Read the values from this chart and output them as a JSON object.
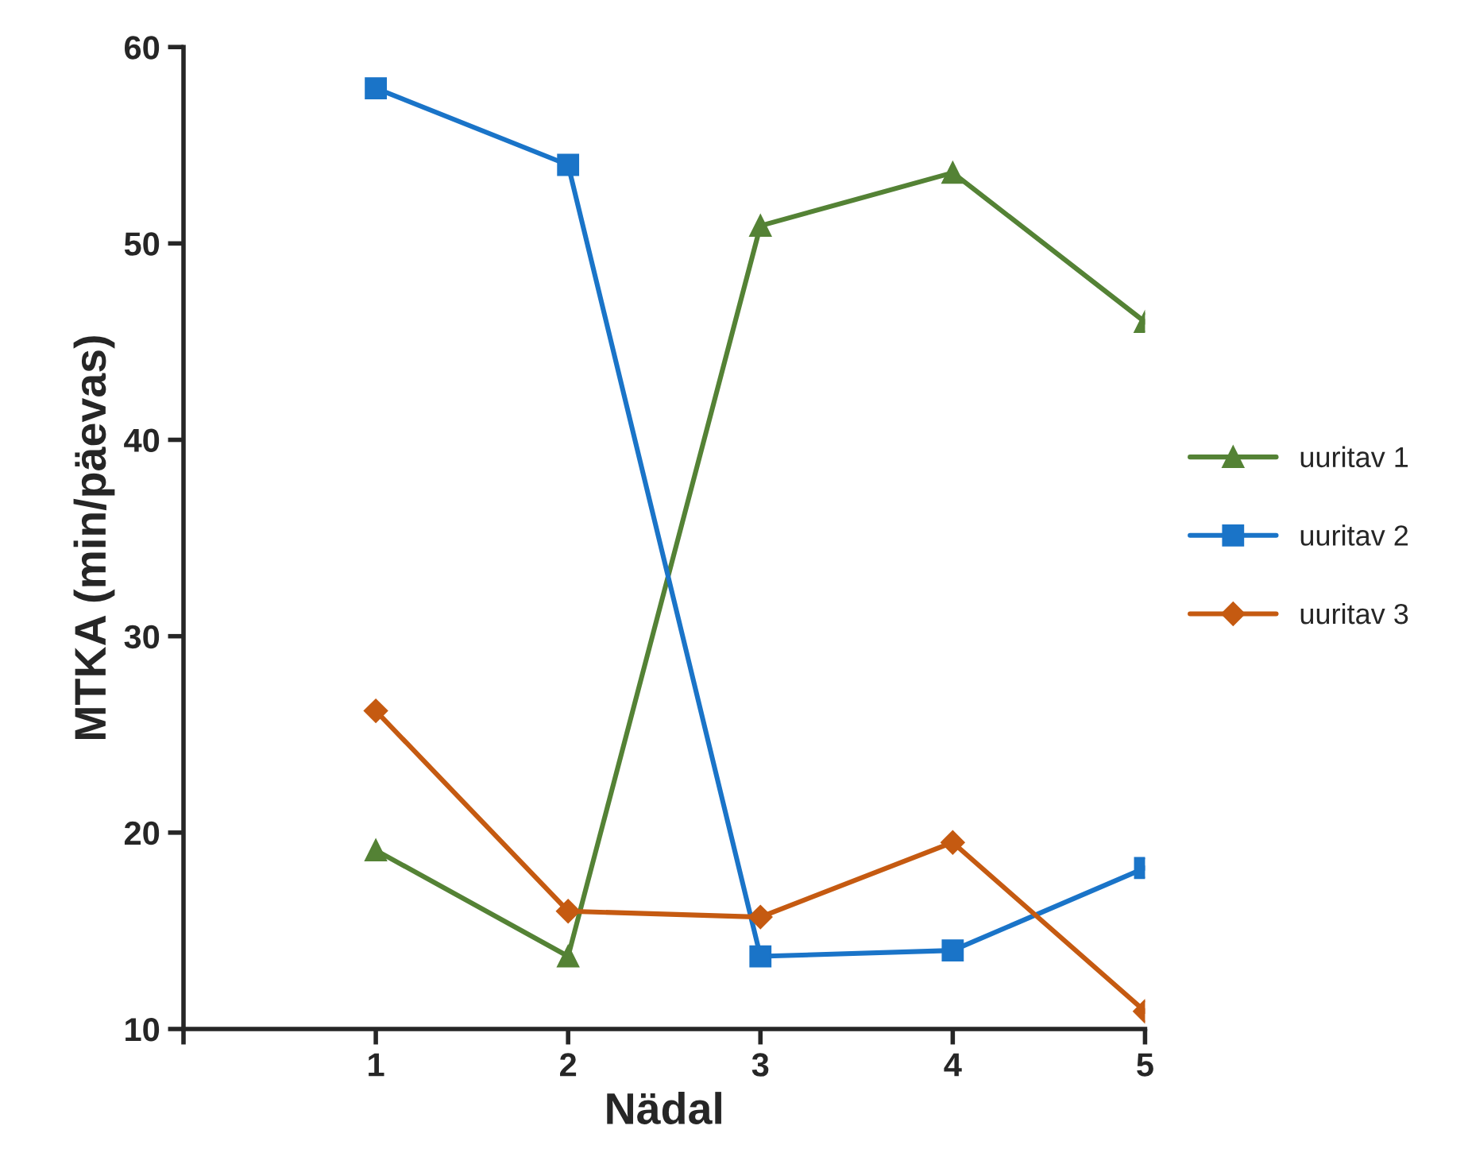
{
  "chart_data": {
    "type": "line",
    "xlabel": "Nädal",
    "ylabel": "MTKA (min/päevas)",
    "x": [
      1,
      2,
      3,
      4,
      5
    ],
    "series": [
      {
        "name": "uuritav 1",
        "color": "#548235",
        "marker": "triangle",
        "values": [
          19.1,
          13.7,
          50.9,
          53.6,
          46.0
        ]
      },
      {
        "name": "uuritav 2",
        "color": "#1a74c8",
        "marker": "square",
        "values": [
          57.9,
          54.0,
          13.7,
          14.0,
          18.2
        ]
      },
      {
        "name": "uuritav 3",
        "color": "#c55a11",
        "marker": "diamond",
        "values": [
          26.2,
          16.0,
          15.7,
          19.5,
          10.9
        ]
      }
    ],
    "xlim": [
      0,
      5
    ],
    "xticks": [
      {
        "value": 0,
        "label": null
      },
      1,
      2,
      3,
      4,
      5
    ],
    "ylim": [
      10,
      60
    ],
    "yticks": [
      10,
      20,
      30,
      40,
      50,
      60
    ],
    "grid": false,
    "legend": "right",
    "line_style": "solid"
  }
}
